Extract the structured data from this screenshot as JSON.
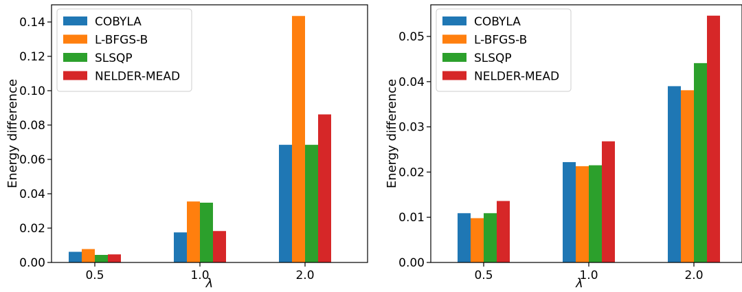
{
  "chart_data": [
    {
      "type": "bar",
      "categories": [
        "0.5",
        "1.0",
        "2.0"
      ],
      "xlabel": "λ",
      "ylabel": "Energy difference",
      "ylim": [
        0,
        0.15
      ],
      "yticks": [
        "0.00",
        "0.02",
        "0.04",
        "0.06",
        "0.08",
        "0.10",
        "0.12",
        "0.14"
      ],
      "ytick_values": [
        0,
        0.02,
        0.04,
        0.06,
        0.08,
        0.1,
        0.12,
        0.14
      ],
      "legend_position": "top-left",
      "grid": false,
      "series": [
        {
          "name": "COBYLA",
          "color": "#1f77b4",
          "values": [
            0.0062,
            0.0175,
            0.0685
          ]
        },
        {
          "name": "L-BFGS-B",
          "color": "#ff7f0e",
          "values": [
            0.0078,
            0.0355,
            0.1435
          ]
        },
        {
          "name": "SLSQP",
          "color": "#2ca02c",
          "values": [
            0.0044,
            0.0348,
            0.0685
          ]
        },
        {
          "name": "NELDER-MEAD",
          "color": "#d62728",
          "values": [
            0.0047,
            0.0183,
            0.0862
          ]
        }
      ]
    },
    {
      "type": "bar",
      "categories": [
        "0.5",
        "1.0",
        "2.0"
      ],
      "xlabel": "λ",
      "ylabel": "Energy difference",
      "ylim": [
        0,
        0.057
      ],
      "yticks": [
        "0.00",
        "0.01",
        "0.02",
        "0.03",
        "0.04",
        "0.05"
      ],
      "ytick_values": [
        0,
        0.01,
        0.02,
        0.03,
        0.04,
        0.05
      ],
      "legend_position": "top-left",
      "grid": false,
      "series": [
        {
          "name": "COBYLA",
          "color": "#1f77b4",
          "values": [
            0.0109,
            0.0222,
            0.039
          ]
        },
        {
          "name": "L-BFGS-B",
          "color": "#ff7f0e",
          "values": [
            0.0098,
            0.0213,
            0.0381
          ]
        },
        {
          "name": "SLSQP",
          "color": "#2ca02c",
          "values": [
            0.0109,
            0.0215,
            0.0441
          ]
        },
        {
          "name": "NELDER-MEAD",
          "color": "#d62728",
          "values": [
            0.0136,
            0.0268,
            0.0546
          ]
        }
      ]
    }
  ]
}
